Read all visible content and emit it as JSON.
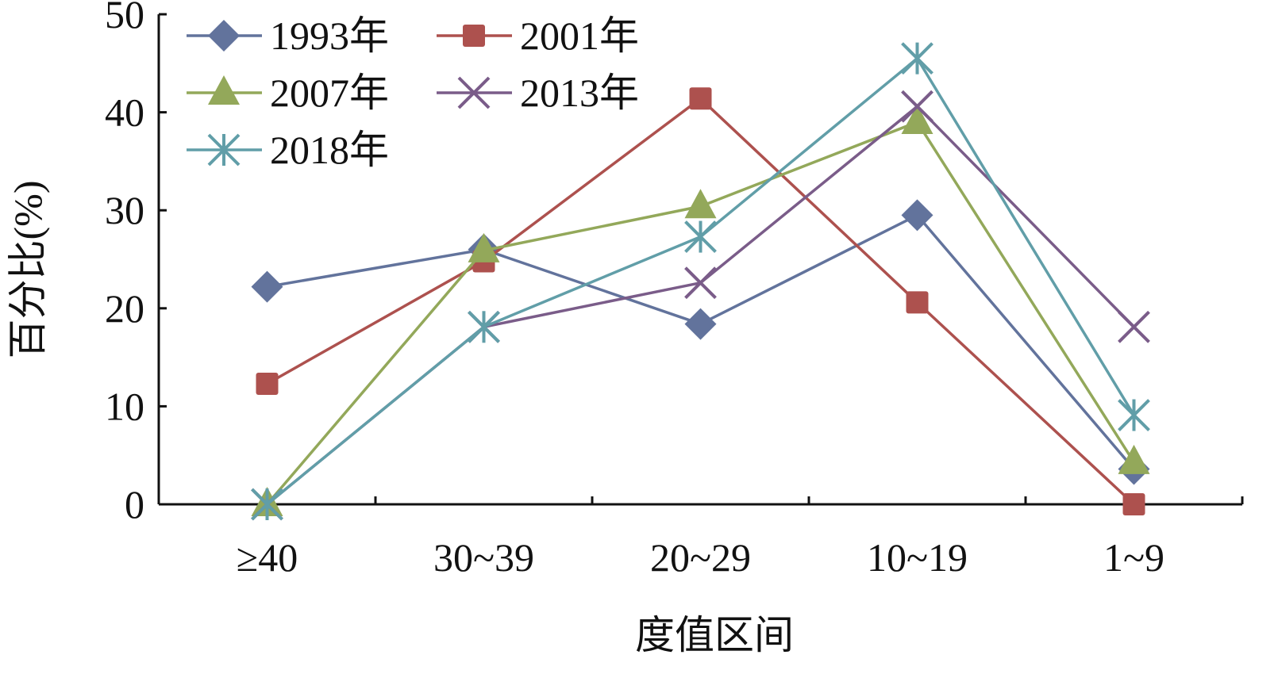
{
  "chart_data": {
    "type": "line",
    "title": "",
    "xlabel": "度值区间",
    "ylabel": "百分比(%)",
    "categories": [
      "≥40",
      "30~39",
      "20~29",
      "10~19",
      "1~9"
    ],
    "ylim": [
      0,
      50
    ],
    "yticks": [
      "0",
      "10",
      "20",
      "30",
      "40",
      "50"
    ],
    "grid": false,
    "legend_position": "top-left",
    "series": [
      {
        "name": "1993年",
        "marker": "diamond",
        "color": "#62739c",
        "values": [
          22.2,
          26.0,
          18.4,
          29.5,
          3.6
        ]
      },
      {
        "name": "2001年",
        "marker": "square",
        "color": "#ad514e",
        "values": [
          12.3,
          24.8,
          41.4,
          20.6,
          0
        ]
      },
      {
        "name": "2007年",
        "marker": "triangle",
        "color": "#93a85a",
        "values": [
          0,
          25.9,
          30.4,
          39.0,
          4.3
        ]
      },
      {
        "name": "2013年",
        "marker": "x",
        "color": "#7a5c89",
        "values": [
          0,
          18.1,
          22.6,
          40.6,
          18.1
        ]
      },
      {
        "name": "2018年",
        "marker": "asterisk",
        "color": "#619ea8",
        "values": [
          0,
          18.1,
          27.3,
          45.5,
          9.1
        ]
      }
    ]
  }
}
